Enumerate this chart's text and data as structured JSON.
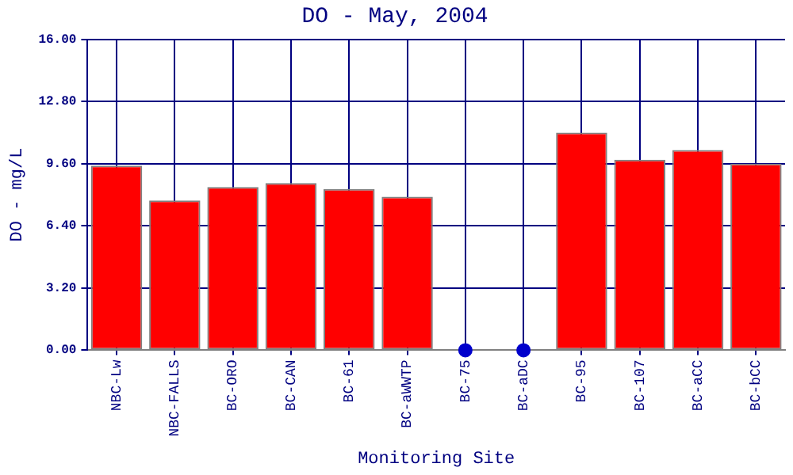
{
  "chart_data": {
    "type": "bar",
    "title": "DO - May, 2004",
    "xlabel": "Monitoring Site",
    "ylabel": "DO - mg/L",
    "categories": [
      "NBC-Lw",
      "NBC-FALLS",
      "BC-ORO",
      "BC-CAN",
      "BC-61",
      "BC-aWWTP",
      "BC-75",
      "BC-aDC",
      "BC-95",
      "BC-107",
      "BC-aCC",
      "BC-bCC"
    ],
    "series": [
      {
        "color": "#ff0000",
        "values": [
          9.5,
          7.7,
          8.4,
          8.6,
          8.3,
          7.9,
          null,
          null,
          11.2,
          9.8,
          10.3,
          9.6
        ]
      },
      {
        "type": "scatter",
        "color": "#0000cc",
        "x": [
          "BC-75",
          "BC-aDC"
        ],
        "values": [
          0,
          0
        ]
      }
    ],
    "ylim": [
      0,
      16
    ],
    "yticks": [
      {
        "value": 0,
        "label": "0.00"
      },
      {
        "value": 3.2,
        "label": "3.20"
      },
      {
        "value": 6.4,
        "label": "6.40"
      },
      {
        "value": 9.6,
        "label": "9.60"
      },
      {
        "value": 12.8,
        "label": "12.80"
      },
      {
        "value": 16,
        "label": "16.00"
      }
    ],
    "grid": true,
    "legend": false,
    "marker": "circle"
  }
}
